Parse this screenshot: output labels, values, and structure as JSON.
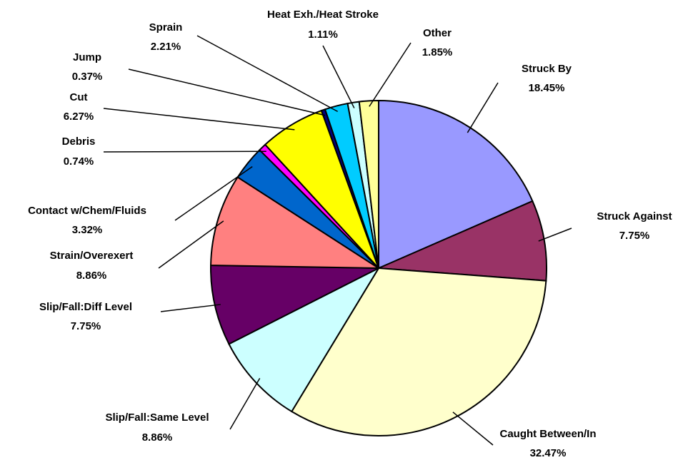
{
  "chart_data": {
    "type": "pie",
    "categories": [
      "Struck By",
      "Struck Against",
      "Caught Between/In",
      "Slip/Fall:Same Level",
      "Slip/Fall:Diff Level",
      "Strain/Overexert",
      "Contact w/Chem/Fluids",
      "Debris",
      "Cut",
      "Jump",
      "Sprain",
      "Heat Exh./Heat Stroke",
      "Other"
    ],
    "values": [
      18.45,
      7.75,
      32.47,
      8.86,
      7.75,
      8.86,
      3.32,
      0.74,
      6.27,
      0.37,
      2.21,
      1.11,
      1.85
    ],
    "value_labels": [
      "18.45%",
      "7.75%",
      "32.47%",
      "8.86%",
      "7.75%",
      "8.86%",
      "3.32%",
      "0.74%",
      "6.27%",
      "0.37%",
      "2.21%",
      "1.11%",
      "1.85%"
    ],
    "colors": [
      "#9999ff",
      "#993366",
      "#ffffcc",
      "#ccffff",
      "#660066",
      "#ff8080",
      "#0066cc",
      "#ff00ff",
      "#ffff00",
      "#000080",
      "#00ccff",
      "#ccffff",
      "#ffff99"
    ]
  }
}
